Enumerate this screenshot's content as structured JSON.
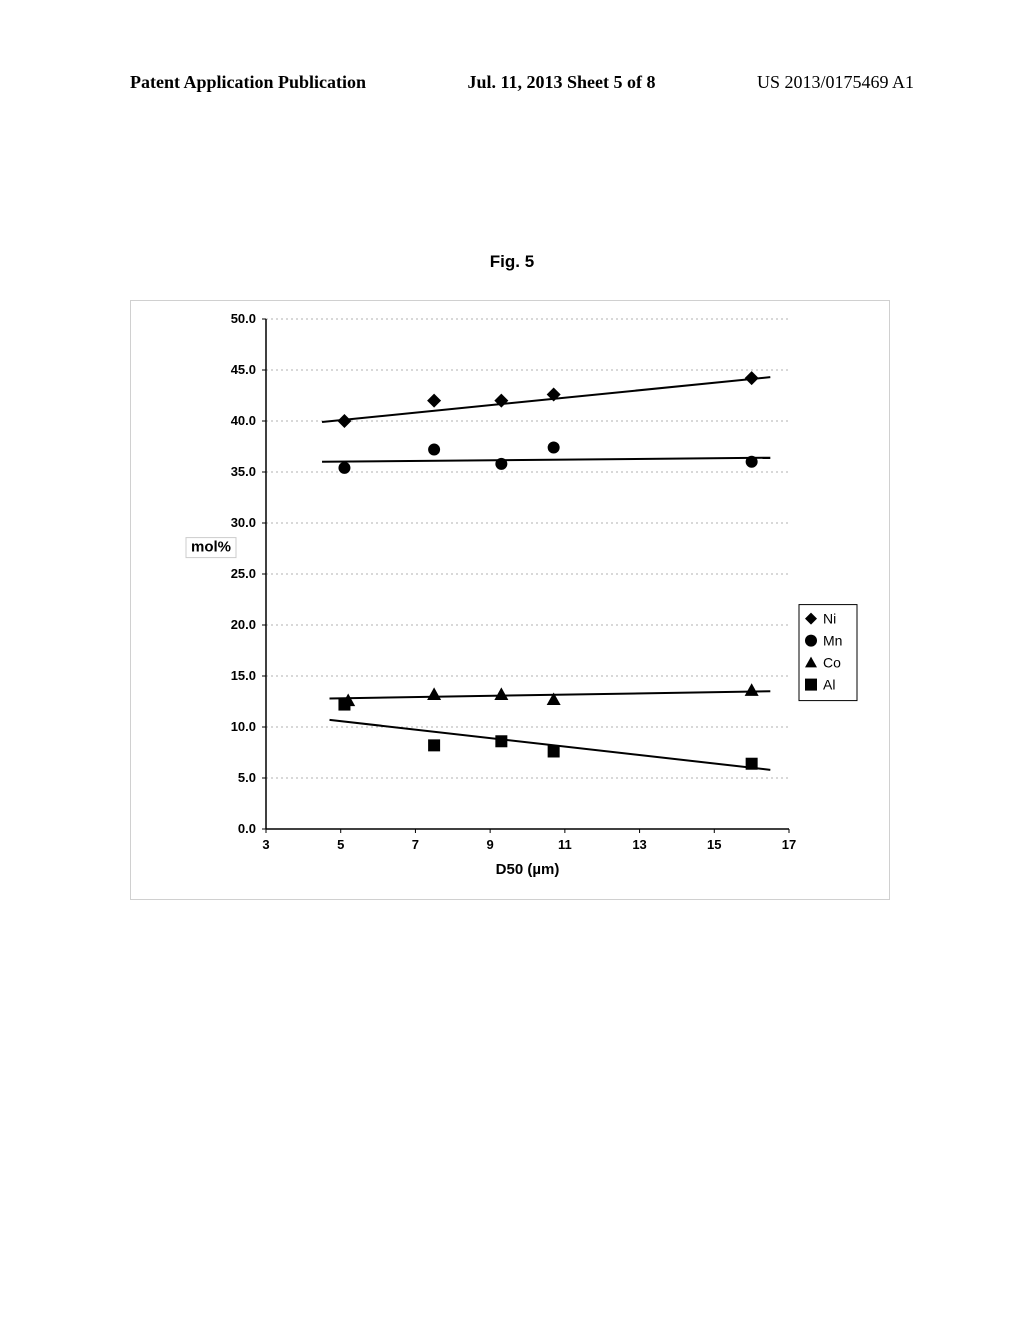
{
  "header": {
    "left": "Patent Application Publication",
    "center": "Jul. 11, 2013  Sheet 5 of 8",
    "right": "US 2013/0175469 A1"
  },
  "figure": {
    "title": "Fig. 5"
  },
  "chart": {
    "type": "scatter",
    "xlabel": "D50 (µm)",
    "ylabel": "mol%",
    "title_fontsize": 17,
    "label_fontsize": 15,
    "tick_fontsize": 13,
    "xlim": [
      3,
      17
    ],
    "ylim": [
      0,
      50
    ],
    "xtick_step": 2,
    "ytick_step": 5,
    "background_color": "#ffffff",
    "grid_color": "#b0b0b0",
    "axis_color": "#000000",
    "grid_dash": "2,3",
    "series": [
      {
        "name": "Ni",
        "marker": "diamond",
        "color": "#000000",
        "marker_size": 7,
        "line_width": 2,
        "points": [
          {
            "x": 5.1,
            "y": 40.0
          },
          {
            "x": 7.5,
            "y": 42.0
          },
          {
            "x": 9.3,
            "y": 42.0
          },
          {
            "x": 10.7,
            "y": 42.6
          },
          {
            "x": 16.0,
            "y": 44.2
          }
        ],
        "trend": {
          "x1": 4.5,
          "y1": 39.9,
          "x2": 16.5,
          "y2": 44.3
        }
      },
      {
        "name": "Mn",
        "marker": "circle",
        "color": "#000000",
        "marker_size": 6,
        "line_width": 2,
        "points": [
          {
            "x": 5.1,
            "y": 35.4
          },
          {
            "x": 7.5,
            "y": 37.2
          },
          {
            "x": 9.3,
            "y": 35.8
          },
          {
            "x": 10.7,
            "y": 37.4
          },
          {
            "x": 16.0,
            "y": 36.0
          }
        ],
        "trend": {
          "x1": 4.5,
          "y1": 36.0,
          "x2": 16.5,
          "y2": 36.4
        }
      },
      {
        "name": "Co",
        "marker": "triangle",
        "color": "#000000",
        "marker_size": 7,
        "line_width": 2,
        "points": [
          {
            "x": 5.2,
            "y": 12.6
          },
          {
            "x": 7.5,
            "y": 13.2
          },
          {
            "x": 9.3,
            "y": 13.2
          },
          {
            "x": 10.7,
            "y": 12.7
          },
          {
            "x": 16.0,
            "y": 13.6
          }
        ],
        "trend": {
          "x1": 4.7,
          "y1": 12.8,
          "x2": 16.5,
          "y2": 13.5
        }
      },
      {
        "name": "Al",
        "marker": "square",
        "color": "#000000",
        "marker_size": 6,
        "line_width": 2,
        "points": [
          {
            "x": 5.1,
            "y": 12.2
          },
          {
            "x": 7.5,
            "y": 8.2
          },
          {
            "x": 9.3,
            "y": 8.6
          },
          {
            "x": 10.7,
            "y": 7.6
          },
          {
            "x": 16.0,
            "y": 6.4
          }
        ],
        "trend": {
          "x1": 4.7,
          "y1": 10.7,
          "x2": 16.5,
          "y2": 5.8
        }
      }
    ],
    "legend": {
      "position": "right",
      "border_color": "#000000",
      "items": [
        "Ni",
        "Mn",
        "Co",
        "Al"
      ]
    }
  }
}
